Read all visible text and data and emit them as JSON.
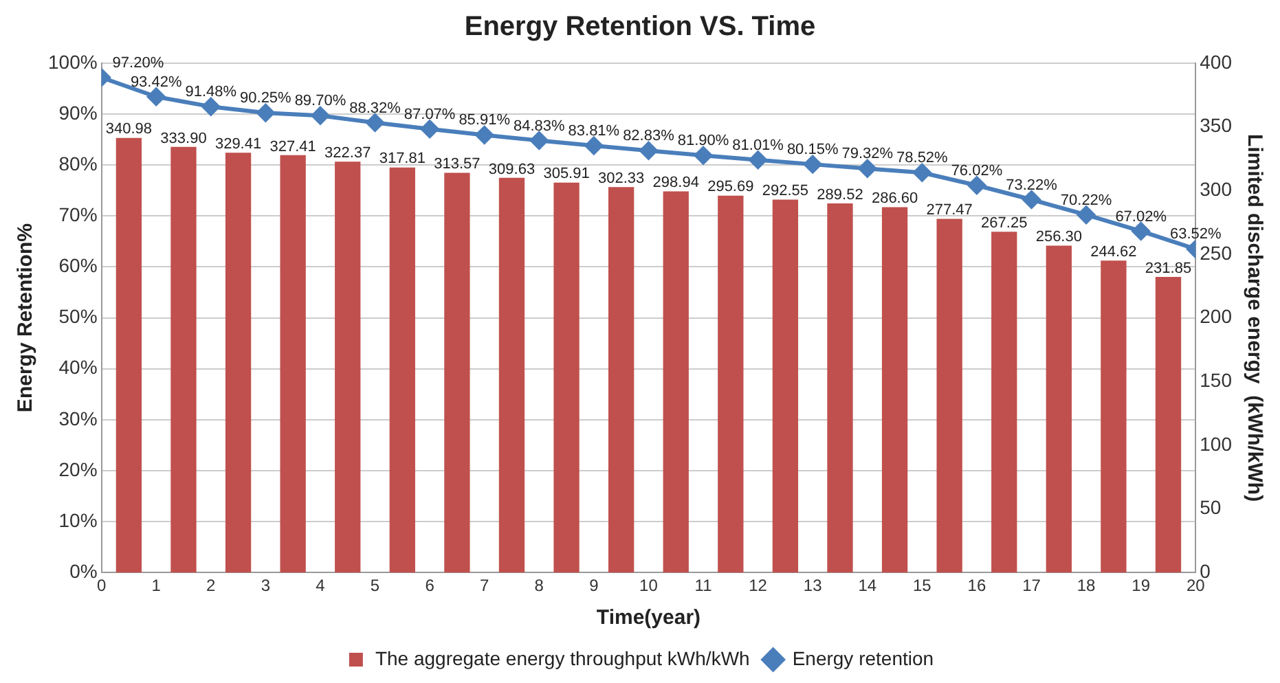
{
  "chart_data": {
    "type": "bar",
    "title": "Energy Retention VS. Time",
    "xlabel": "Time(year)",
    "ylabel": "Energy Retention%",
    "y2label": "Limited discharge energy  (kWh/kWh)",
    "xlim": [
      0,
      20
    ],
    "xticks": [
      0,
      1,
      2,
      3,
      4,
      5,
      6,
      7,
      8,
      9,
      10,
      11,
      12,
      13,
      14,
      15,
      16,
      17,
      18,
      19,
      20
    ],
    "ylim": [
      0,
      100
    ],
    "yticks": [
      {
        "value": 0,
        "label": "0%"
      },
      {
        "value": 10,
        "label": "10%"
      },
      {
        "value": 20,
        "label": "20%"
      },
      {
        "value": 30,
        "label": "30%"
      },
      {
        "value": 40,
        "label": "40%"
      },
      {
        "value": 50,
        "label": "50%"
      },
      {
        "value": 60,
        "label": "60%"
      },
      {
        "value": 70,
        "label": "70%"
      },
      {
        "value": 80,
        "label": "80%"
      },
      {
        "value": 90,
        "label": "90%"
      },
      {
        "value": 100,
        "label": "100%"
      }
    ],
    "y2lim": [
      0,
      400
    ],
    "y2ticks": [
      0,
      50,
      100,
      150,
      200,
      250,
      300,
      350,
      400
    ],
    "grid": "y",
    "legend": "bottom",
    "series": [
      {
        "name": "The aggregate energy throughput kWh/kWh",
        "axis": "y2",
        "color": "#c0504d",
        "x": [
          0.5,
          1.5,
          2.5,
          3.5,
          4.5,
          5.5,
          6.5,
          7.5,
          8.5,
          9.5,
          10.5,
          11.5,
          12.5,
          13.5,
          14.5,
          15.5,
          16.5,
          17.5,
          18.5,
          19.5
        ],
        "values": [
          340.98,
          333.9,
          329.41,
          327.41,
          322.37,
          317.81,
          313.57,
          309.63,
          305.91,
          302.33,
          298.94,
          295.69,
          292.55,
          289.52,
          286.6,
          277.47,
          267.25,
          256.3,
          244.62,
          231.85
        ],
        "value_labels": [
          "340.98",
          "333.90",
          "329.41",
          "327.41",
          "322.37",
          "317.81",
          "313.57",
          "309.63",
          "305.91",
          "302.33",
          "298.94",
          "295.69",
          "292.55",
          "289.52",
          "286.60",
          "277.47",
          "267.25",
          "256.30",
          "244.62",
          "231.85"
        ]
      },
      {
        "name": "Energy retention",
        "type": "line",
        "marker": "diamond",
        "color": "#4a7ebb",
        "x": [
          0,
          1,
          2,
          3,
          4,
          5,
          6,
          7,
          8,
          9,
          10,
          11,
          12,
          13,
          14,
          15,
          16,
          17,
          18,
          19,
          20
        ],
        "values": [
          97.2,
          93.42,
          91.48,
          90.25,
          89.7,
          88.32,
          87.07,
          85.91,
          84.83,
          83.81,
          82.83,
          81.9,
          81.01,
          80.15,
          79.32,
          78.52,
          76.02,
          73.22,
          70.22,
          67.02,
          63.52
        ],
        "value_labels": [
          "97.20%",
          "93.42%",
          "91.48%",
          "90.25%",
          "89.70%",
          "88.32%",
          "87.07%",
          "85.91%",
          "84.83%",
          "83.81%",
          "82.83%",
          "81.90%",
          "81.01%",
          "80.15%",
          "79.32%",
          "78.52%",
          "76.02%",
          "73.22%",
          "70.22%",
          "67.02%",
          "63.52%"
        ]
      }
    ]
  }
}
